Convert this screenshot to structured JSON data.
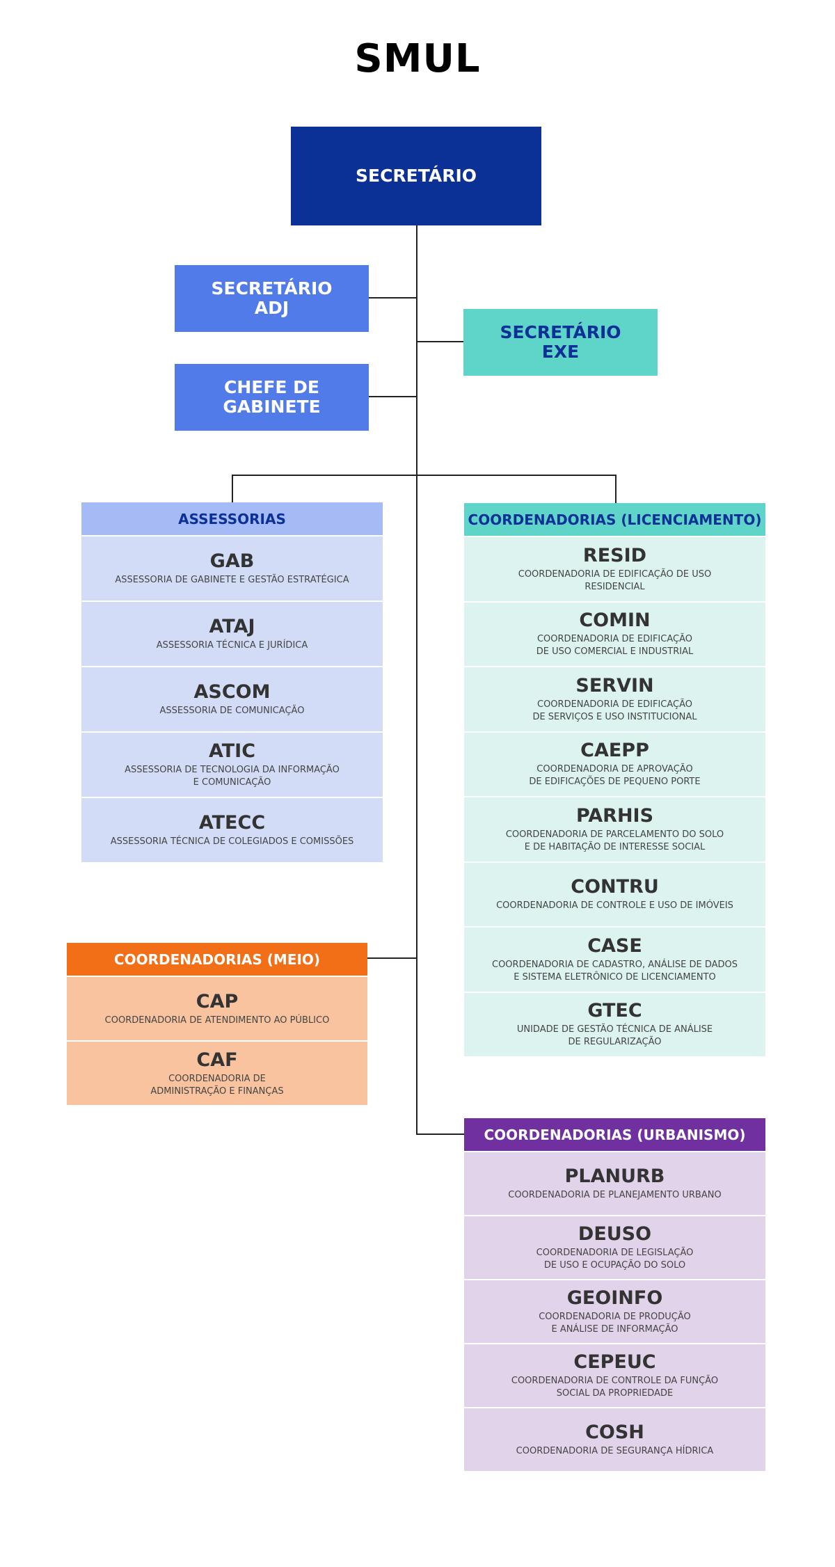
{
  "title": "SMUL",
  "top": {
    "secretario": "SECRETÁRIO",
    "secretario_adj": "SECRETÁRIO\nADJ",
    "secretario_exe": "SECRETÁRIO\nEXE",
    "chefe_gabinete": "CHEFE DE\nGABINETE"
  },
  "colors": {
    "secretario": "#0b3196",
    "adj_chefe": "#527bea",
    "exe": "#5fd4c8",
    "assessorias_header": "#a6bbf5",
    "assessorias_row": "#d2dcf7",
    "licenciamento_header": "#5fd4c8",
    "licenciamento_row": "#dcf3f0",
    "meio_header": "#f26f17",
    "meio_row": "#f8c39e",
    "urbanismo_header": "#7030a0",
    "urbanismo_row": "#e1d3ea"
  },
  "groups": [
    {
      "key": "assessorias",
      "header": "ASSESSORIAS",
      "header_text_color": "#0b3196",
      "items": [
        {
          "acronym": "GAB",
          "desc": "ASSESSORIA DE GABINETE E GESTÃO ESTRATÉGICA"
        },
        {
          "acronym": "ATAJ",
          "desc": "ASSESSORIA TÉCNICA E JURÍDICA"
        },
        {
          "acronym": "ASCOM",
          "desc": "ASSESSORIA DE COMUNICAÇÃO"
        },
        {
          "acronym": "ATIC",
          "desc": "ASSESSORIA DE TECNOLOGIA DA INFORMAÇÃO\nE COMUNICAÇÃO"
        },
        {
          "acronym": "ATECC",
          "desc": "ASSESSORIA TÉCNICA DE COLEGIADOS E COMISSÕES"
        }
      ]
    },
    {
      "key": "licenciamento",
      "header": "COORDENADORIAS (LICENCIAMENTO)",
      "header_text_color": "#0b3196",
      "items": [
        {
          "acronym": "RESID",
          "desc": "COORDENADORIA DE EDIFICAÇÃO DE USO\nRESIDENCIAL"
        },
        {
          "acronym": "COMIN",
          "desc": "COORDENADORIA DE EDIFICAÇÃO\nDE USO COMERCIAL E INDUSTRIAL"
        },
        {
          "acronym": "SERVIN",
          "desc": "COORDENADORIA DE EDIFICAÇÃO\nDE SERVIÇOS E USO INSTITUCIONAL"
        },
        {
          "acronym": "CAEPP",
          "desc": "COORDENADORIA DE APROVAÇÃO\nDE EDIFICAÇÕES DE PEQUENO PORTE"
        },
        {
          "acronym": "PARHIS",
          "desc": "COORDENADORIA DE PARCELAMENTO DO SOLO\nE DE HABITAÇÃO DE INTERESSE SOCIAL"
        },
        {
          "acronym": "CONTRU",
          "desc": "COORDENADORIA DE CONTROLE E USO DE IMÓVEIS"
        },
        {
          "acronym": "CASE",
          "desc": "COORDENADORIA DE CADASTRO, ANÁLISE DE DADOS\nE SISTEMA ELETRÔNICO DE LICENCIAMENTO"
        },
        {
          "acronym": "GTEC",
          "desc": "UNIDADE DE GESTÃO TÉCNICA DE ANÁLISE\nDE REGULARIZAÇÃO"
        }
      ]
    },
    {
      "key": "meio",
      "header": "COORDENADORIAS (MEIO)",
      "header_text_color": "#ffffff",
      "items": [
        {
          "acronym": "CAP",
          "desc": "COORDENADORIA DE ATENDIMENTO AO PÚBLICO"
        },
        {
          "acronym": "CAF",
          "desc": "COORDENADORIA DE\nADMINISTRAÇÃO E FINANÇAS"
        }
      ]
    },
    {
      "key": "urbanismo",
      "header": "COORDENADORIAS (URBANISMO)",
      "header_text_color": "#ffffff",
      "items": [
        {
          "acronym": "PLANURB",
          "desc": "COORDENADORIA DE PLANEJAMENTO URBANO"
        },
        {
          "acronym": "DEUSO",
          "desc": "COORDENADORIA DE LEGISLAÇÃO\nDE USO E OCUPAÇÃO DO SOLO"
        },
        {
          "acronym": "GEOINFO",
          "desc": "COORDENADORIA DE PRODUÇÃO\nE ANÁLISE DE INFORMAÇÃO"
        },
        {
          "acronym": "CEPEUC",
          "desc": "COORDENADORIA DE CONTROLE DA FUNÇÃO\nSOCIAL DA PROPRIEDADE"
        },
        {
          "acronym": "COSH",
          "desc": "COORDENADORIA DE SEGURANÇA HÍDRICA"
        }
      ]
    }
  ]
}
